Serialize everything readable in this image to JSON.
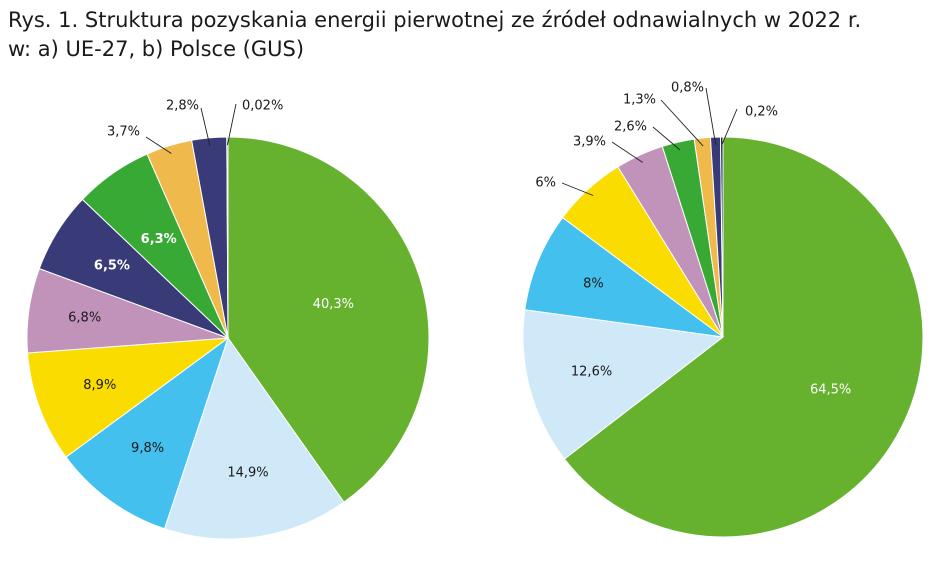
{
  "title_line1": "Rys. 1. Struktura pozyskania energii pierwotnej ze źródeł odnawialnych w 2022 r.",
  "title_line2": "w: a) UE-27, b) Polsce (GUS)",
  "chart_data": [
    {
      "type": "pie",
      "title": "",
      "slices": [
        {
          "label": "40,3%",
          "value": 40.3,
          "color": "#66b22f"
        },
        {
          "label": "14,9%",
          "value": 14.9,
          "color": "#cfe9f9"
        },
        {
          "label": "9,8%",
          "value": 9.8,
          "color": "#44c0ef"
        },
        {
          "label": "8,9%",
          "value": 8.9,
          "color": "#fbdc00"
        },
        {
          "label": "6,8%",
          "value": 6.8,
          "color": "#c193ba"
        },
        {
          "label": "6,5%",
          "value": 6.5,
          "color": "#383b77"
        },
        {
          "label": "6,3%",
          "value": 6.3,
          "color": "#39a935"
        },
        {
          "label": "3,7%",
          "value": 3.7,
          "color": "#efb94b"
        },
        {
          "label": "2,8%",
          "value": 2.8,
          "color": "#383b77"
        },
        {
          "label": "0,02%",
          "value": 0.02,
          "color": "#1c1f5a"
        }
      ]
    },
    {
      "type": "pie",
      "title": "",
      "slices": [
        {
          "label": "64,5%",
          "value": 64.5,
          "color": "#66b22f"
        },
        {
          "label": "12,6%",
          "value": 12.6,
          "color": "#cfe9f9"
        },
        {
          "label": "8%",
          "value": 8.0,
          "color": "#44c0ef"
        },
        {
          "label": "6%",
          "value": 6.0,
          "color": "#fbdc00"
        },
        {
          "label": "3,9%",
          "value": 3.9,
          "color": "#c193ba"
        },
        {
          "label": "2,6%",
          "value": 2.6,
          "color": "#39a935"
        },
        {
          "label": "1,3%",
          "value": 1.3,
          "color": "#efb94b"
        },
        {
          "label": "0,8%",
          "value": 0.8,
          "color": "#383b77"
        },
        {
          "label": "0,2%",
          "value": 0.2,
          "color": "#1c1f5a"
        }
      ]
    }
  ]
}
